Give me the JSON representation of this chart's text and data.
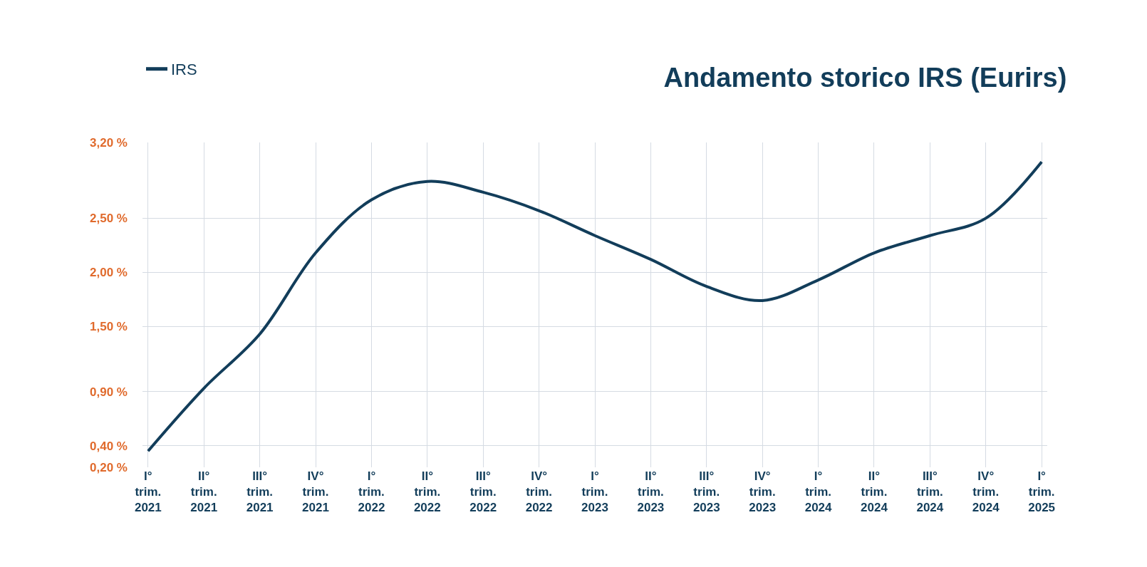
{
  "chart_data": {
    "type": "line",
    "title": "Andamento storico IRS (Eurirs)",
    "categories": [
      "I°\ntrim.\n2021",
      "II°\ntrim.\n2021",
      "III°\ntrim.\n2021",
      "IV°\ntrim.\n2021",
      "I°\ntrim.\n2022",
      "II°\ntrim.\n2022",
      "III°\ntrim.\n2022",
      "IV°\ntrim.\n2022",
      "I°\ntrim.\n2023",
      "II°\ntrim.\n2023",
      "III°\ntrim.\n2023",
      "IV°\ntrim.\n2023",
      "I°\ntrim.\n2024",
      "II°\ntrim.\n2024",
      "III°\ntrim.\n2024",
      "IV°\ntrim.\n2024",
      "I°\ntrim.\n2025"
    ],
    "series": [
      {
        "name": "IRS",
        "color": "#123d5a",
        "values": [
          0.35,
          0.93,
          1.43,
          2.18,
          2.67,
          2.84,
          2.74,
          2.57,
          2.34,
          2.12,
          1.87,
          1.74,
          1.93,
          2.18,
          2.34,
          2.5,
          3.02
        ]
      }
    ],
    "ylim": [
      0.2,
      3.2
    ],
    "yticks": [
      {
        "value": 0.2,
        "label": "0,20 %"
      },
      {
        "value": 0.4,
        "label": "0,40 %"
      },
      {
        "value": 0.9,
        "label": "0,90 %"
      },
      {
        "value": 1.5,
        "label": "1,50 %"
      },
      {
        "value": 2.0,
        "label": "2,00 %"
      },
      {
        "value": 2.5,
        "label": "2,50 %"
      },
      {
        "value": 3.2,
        "label": "3,20 %"
      }
    ],
    "grid": true,
    "legend": "top left",
    "marker": "none",
    "line_style": "solid"
  }
}
